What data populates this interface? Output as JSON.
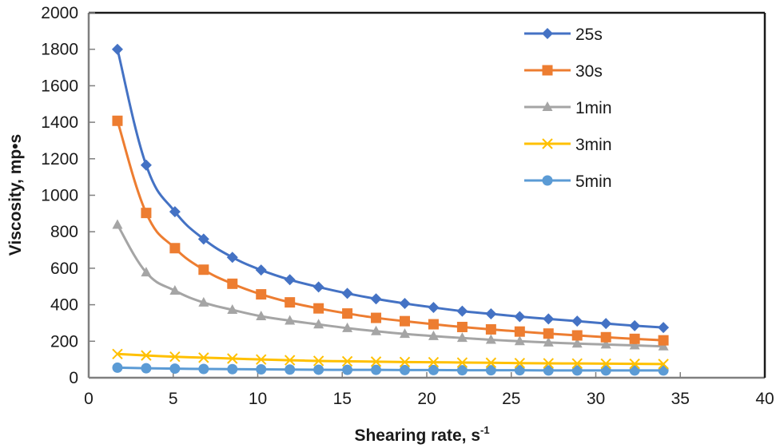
{
  "chart_data": {
    "type": "line",
    "title": "",
    "xlabel": "Shearing rate, s",
    "xlabel_superscript": "-1",
    "ylabel": "Viscosity, mp•s",
    "xlim": [
      0,
      40
    ],
    "ylim": [
      0,
      2000
    ],
    "x_ticks": [
      0,
      5,
      10,
      15,
      20,
      25,
      30,
      35,
      40
    ],
    "y_ticks": [
      0,
      200,
      400,
      600,
      800,
      1000,
      1200,
      1400,
      1600,
      1800,
      2000
    ],
    "x_tick_labels": [
      "0",
      "5",
      "10",
      "15",
      "20",
      "25",
      "30",
      "35",
      "40"
    ],
    "y_tick_labels": [
      "0",
      "200",
      "400",
      "600",
      "800",
      "1000",
      "1200",
      "1400",
      "1600",
      "1800",
      "2000"
    ],
    "grid": false,
    "smooth": true,
    "legend_position": "top-right",
    "x": [
      1.7,
      3.4,
      5.1,
      6.8,
      8.5,
      10.2,
      11.9,
      13.6,
      15.3,
      17.0,
      18.7,
      20.4,
      22.1,
      23.8,
      25.5,
      27.2,
      28.9,
      30.6,
      32.3,
      34.0
    ],
    "series": [
      {
        "name": "25s",
        "color": "#4472C4",
        "marker": "diamond",
        "values": [
          1800,
          1165,
          910,
          760,
          660,
          590,
          537,
          497,
          462,
          432,
          407,
          385,
          365,
          350,
          335,
          322,
          310,
          297,
          285,
          275
        ]
      },
      {
        "name": "30s",
        "color": "#ED7D31",
        "marker": "square",
        "values": [
          1408,
          903,
          710,
          592,
          515,
          457,
          413,
          380,
          352,
          328,
          310,
          293,
          278,
          265,
          253,
          242,
          232,
          222,
          213,
          205
        ]
      },
      {
        "name": "1min",
        "color": "#A5A5A5",
        "marker": "triangle",
        "values": [
          838,
          577,
          477,
          412,
          372,
          337,
          313,
          292,
          272,
          255,
          240,
          228,
          218,
          208,
          200,
          193,
          187,
          182,
          177,
          172
        ]
      },
      {
        "name": "3min",
        "color": "#FFC000",
        "marker": "x",
        "values": [
          130,
          122,
          115,
          110,
          105,
          100,
          96,
          92,
          90,
          88,
          86,
          85,
          83,
          82,
          80,
          79,
          78,
          77,
          76,
          75
        ]
      },
      {
        "name": "5min",
        "color": "#5B9BD5",
        "marker": "circle",
        "values": [
          55,
          52,
          50,
          48,
          47,
          46,
          45,
          44,
          43,
          43,
          42,
          42,
          41,
          41,
          41,
          40,
          40,
          40,
          40,
          40
        ]
      }
    ]
  }
}
